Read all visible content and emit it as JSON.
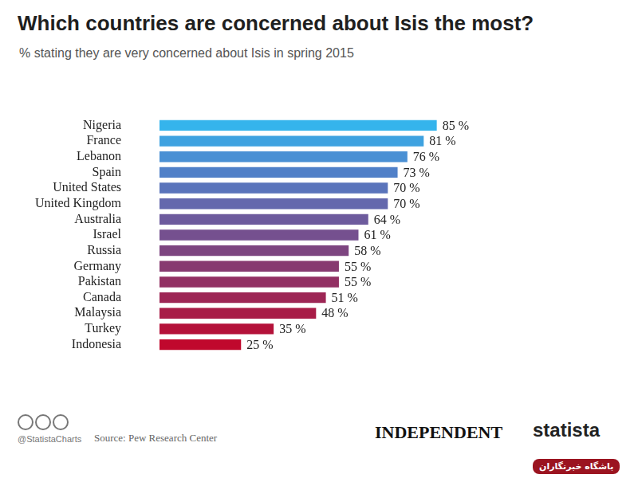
{
  "chart_data": {
    "type": "bar",
    "orientation": "horizontal",
    "title": "Which countries are concerned about Isis the most?",
    "subtitle": "% stating they are very concerned about Isis in spring 2015",
    "categories": [
      "Nigeria",
      "France",
      "Lebanon",
      "Spain",
      "United States",
      "United Kingdom",
      "Australia",
      "Israel",
      "Russia",
      "Germany",
      "Pakistan",
      "Canada",
      "Malaysia",
      "Turkey",
      "Indonesia"
    ],
    "values": [
      85,
      81,
      76,
      73,
      70,
      70,
      64,
      61,
      58,
      55,
      55,
      51,
      48,
      35,
      25
    ],
    "value_labels": [
      "85 %",
      "81 %",
      "76 %",
      "73 %",
      "70 %",
      "70 %",
      "64 %",
      "61 %",
      "58 %",
      "55 %",
      "55 %",
      "51 %",
      "48 %",
      "35 %",
      "25 %"
    ],
    "colors": [
      "#35b4ec",
      "#3fa2e0",
      "#4a90d4",
      "#5080c8",
      "#5a74bb",
      "#6468ad",
      "#6d5b9d",
      "#75508f",
      "#7d4580",
      "#873a70",
      "#923063",
      "#9d2655",
      "#a81c47",
      "#b4123a",
      "#c0082d"
    ],
    "xlim": [
      0,
      100
    ],
    "grid": false,
    "data_labels": true,
    "tick_labels": "y",
    "annotations": [
      "@StatistaCharts",
      "Source: Pew Research Center",
      "INDEPENDENT",
      "statista",
      "باشگاه خبرنگاران"
    ]
  }
}
